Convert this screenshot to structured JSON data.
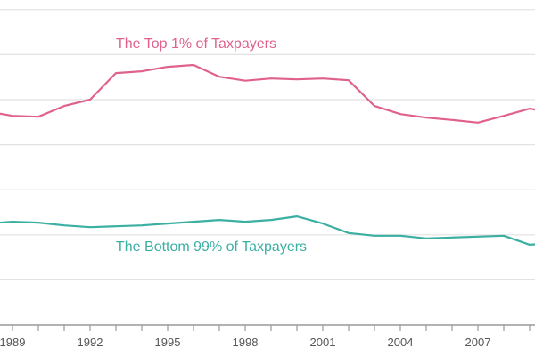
{
  "chart_data": {
    "type": "line",
    "title": "",
    "xlabel": "",
    "ylabel": "",
    "grid": true,
    "x": [
      1988,
      1989,
      1990,
      1991,
      1992,
      1993,
      1994,
      1995,
      1996,
      1997,
      1998,
      1999,
      2000,
      2001,
      2002,
      2003,
      2004,
      2005,
      2006,
      2007,
      2008,
      2009,
      2010
    ],
    "xlim": [
      1988.5,
      2009.2
    ],
    "ylim": [
      0,
      7
    ],
    "y_gridlines": [
      1,
      2,
      3,
      4,
      5,
      6,
      7
    ],
    "x_tick_labels": [
      "1989",
      "1992",
      "1995",
      "1998",
      "2001",
      "2004",
      "2007"
    ],
    "x_tick_label_years": [
      1989,
      1992,
      1995,
      1998,
      2001,
      2004,
      2007
    ],
    "series": [
      {
        "name": "The Top 1% of Taxpayers",
        "color": "#e0628c",
        "values": [
          4.74,
          4.64,
          4.62,
          4.86,
          5.0,
          5.59,
          5.63,
          5.73,
          5.77,
          5.51,
          5.42,
          5.47,
          5.45,
          5.47,
          5.43,
          4.86,
          4.68,
          4.6,
          4.55,
          4.49,
          4.64,
          4.8,
          4.7
        ]
      },
      {
        "name": "The Bottom 99% of Taxpayers",
        "color": "#3aafa2",
        "values": [
          2.25,
          2.29,
          2.27,
          2.21,
          2.17,
          2.19,
          2.21,
          2.25,
          2.29,
          2.33,
          2.29,
          2.33,
          2.41,
          2.25,
          2.04,
          1.98,
          1.98,
          1.92,
          1.94,
          1.96,
          1.98,
          1.78,
          1.82
        ]
      }
    ],
    "annotations": [
      "The Top 1% of Taxpayers",
      "The Bottom 99% of Taxpayers"
    ]
  }
}
